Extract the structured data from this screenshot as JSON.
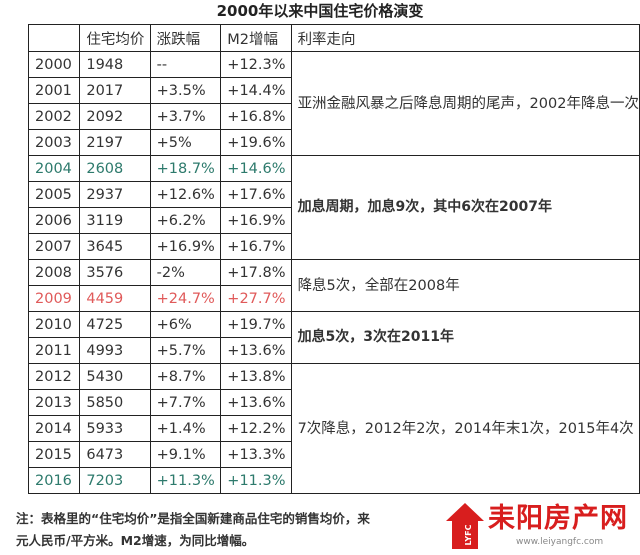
{
  "title": "2000年以来中国住宅价格演变",
  "headers": [
    "",
    "住宅均价",
    "涨跌幅",
    "M2增幅",
    "利率走向"
  ],
  "rows": [
    {
      "year": "2000",
      "price": "1948",
      "change": "--",
      "m2": "+12.3%",
      "style": "normal"
    },
    {
      "year": "2001",
      "price": "2017",
      "change": "+3.5%",
      "m2": "+14.4%",
      "style": "normal"
    },
    {
      "year": "2002",
      "price": "2092",
      "change": "+3.7%",
      "m2": "+16.8%",
      "style": "normal"
    },
    {
      "year": "2003",
      "price": "2197",
      "change": "+5%",
      "m2": "+19.6%",
      "style": "normal"
    },
    {
      "year": "2004",
      "price": "2608",
      "change": "+18.7%",
      "m2": "+14.6%",
      "style": "green"
    },
    {
      "year": "2005",
      "price": "2937",
      "change": "+12.6%",
      "m2": "+17.6%",
      "style": "normal"
    },
    {
      "year": "2006",
      "price": "3119",
      "change": "+6.2%",
      "m2": "+16.9%",
      "style": "normal"
    },
    {
      "year": "2007",
      "price": "3645",
      "change": "+16.9%",
      "m2": "+16.7%",
      "style": "normal"
    },
    {
      "year": "2008",
      "price": "3576",
      "change": "-2%",
      "m2": "+17.8%",
      "style": "normal"
    },
    {
      "year": "2009",
      "price": "4459",
      "change": "+24.7%",
      "m2": "+27.7%",
      "style": "red"
    },
    {
      "year": "2010",
      "price": "4725",
      "change": "+6%",
      "m2": "+19.7%",
      "style": "normal"
    },
    {
      "year": "2011",
      "price": "4993",
      "change": "+5.7%",
      "m2": "+13.6%",
      "style": "normal"
    },
    {
      "year": "2012",
      "price": "5430",
      "change": "+8.7%",
      "m2": "+13.8%",
      "style": "normal"
    },
    {
      "year": "2013",
      "price": "5850",
      "change": "+7.7%",
      "m2": "+13.6%",
      "style": "normal"
    },
    {
      "year": "2014",
      "price": "5933",
      "change": "+1.4%",
      "m2": "+12.2%",
      "style": "normal"
    },
    {
      "year": "2015",
      "price": "6473",
      "change": "+9.1%",
      "m2": "+13.3%",
      "style": "normal"
    },
    {
      "year": "2016",
      "price": "7203",
      "change": "+11.3%",
      "m2": "+11.3%",
      "style": "green"
    }
  ],
  "rate_notes": [
    {
      "text": "亚洲金融风暴之后降息周期的尾声，2002年降息一次",
      "bold": false
    },
    {
      "text": "加息周期，加息9次，其中6次在2007年",
      "bold": true
    },
    {
      "text": "降息5次，全部在2008年",
      "bold": false
    },
    {
      "text": "加息5次，3次在2011年",
      "bold": true
    },
    {
      "text": "7次降息，2012年2次，2014年末1次，2015年4次",
      "bold": false
    }
  ],
  "note": {
    "line1": "注：表格里的“住宅均价”是指全国新建商品住宅的销售均价，来",
    "line2": "元人民币/平方米。M2增速，为同比增幅。"
  },
  "logo": {
    "text": "耒阳房产网",
    "url": "www.leiyangfc.com",
    "side": "LYFC"
  },
  "colors": {
    "green": "#2d7a6c",
    "red": "#e05a5a",
    "logo_red": "#d81e1e"
  }
}
